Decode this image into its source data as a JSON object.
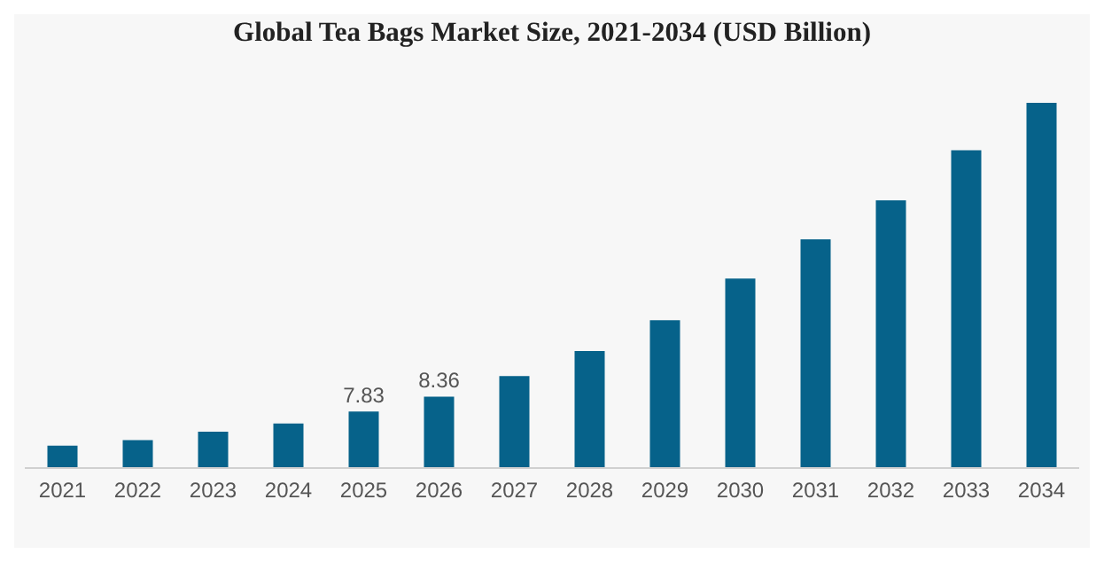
{
  "chart_data": {
    "type": "bar",
    "title": "Global Tea Bags Market Size, 2021-2034 (USD Billion)",
    "categories": [
      "2021",
      "2022",
      "2023",
      "2024",
      "2025",
      "2026",
      "2027",
      "2028",
      "2029",
      "2030",
      "2031",
      "2032",
      "2033",
      "2034"
    ],
    "ylim": [
      5.8,
      18.9
    ],
    "series": [
      {
        "color": "#06628a",
        "values": [
          6.6,
          6.8,
          7.1,
          7.4,
          7.83,
          8.36,
          9.1,
          10.0,
          11.1,
          12.6,
          14.0,
          15.4,
          17.2,
          18.9
        ],
        "value_labels": [
          null,
          null,
          null,
          null,
          "7.83",
          "8.36",
          null,
          null,
          null,
          null,
          null,
          null,
          null,
          null
        ]
      }
    ]
  }
}
